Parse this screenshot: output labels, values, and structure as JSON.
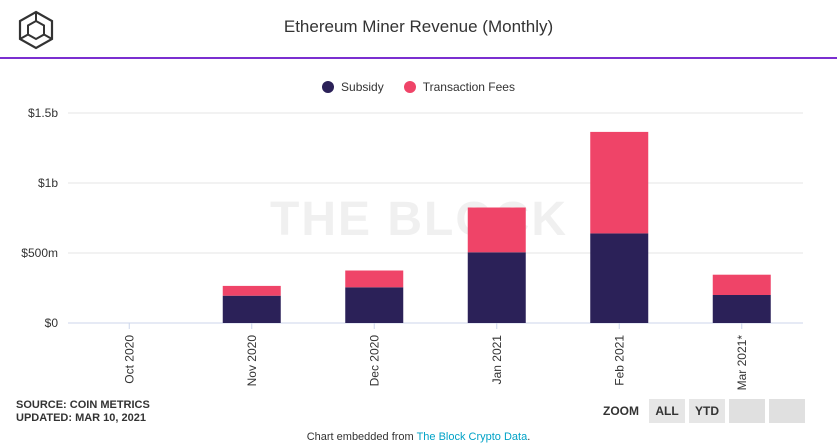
{
  "header": {
    "title": "Ethereum Miner Revenue (Monthly)"
  },
  "watermark": "THE BLOCK",
  "footer": {
    "source_line": "SOURCE: COIN METRICS",
    "updated_line": "UPDATED: MAR 10, 2021",
    "zoom_label": "ZOOM",
    "zoom_buttons": [
      "ALL",
      "YTD",
      "",
      ""
    ],
    "embed_prefix": "Chart embedded from ",
    "embed_link": "The Block Crypto Data",
    "embed_suffix": "."
  },
  "colors": {
    "subsidy": "#2b2158",
    "fees": "#ef4468",
    "accent_line": "#7b2fd0",
    "grid": "#e6e6e6"
  },
  "chart_data": {
    "type": "bar",
    "stacked": true,
    "categories": [
      "Oct 2020",
      "Nov 2020",
      "Dec 2020",
      "Jan 2021",
      "Feb 2021",
      "Mar 2021*"
    ],
    "series": [
      {
        "name": "Subsidy",
        "values": [
          0,
          195,
          255,
          505,
          640,
          200
        ]
      },
      {
        "name": "Transaction Fees",
        "values": [
          0,
          70,
          120,
          320,
          725,
          145
        ]
      }
    ],
    "units": "millions USD",
    "ylim": [
      0,
      1500
    ],
    "yticks": [
      {
        "value": 0,
        "label": "$0"
      },
      {
        "value": 500,
        "label": "$500m"
      },
      {
        "value": 1000,
        "label": "$1b"
      },
      {
        "value": 1500,
        "label": "$1.5b"
      }
    ],
    "legend": {
      "position": "top-center",
      "entries": [
        "Subsidy",
        "Transaction Fees"
      ]
    },
    "grid": true
  }
}
